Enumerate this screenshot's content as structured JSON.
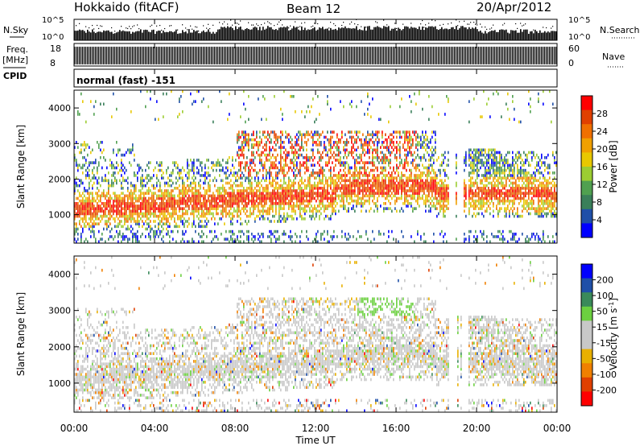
{
  "header": {
    "station": "Hokkaido (fitACF)",
    "beam": "Beam 12",
    "date": "20/Apr/2012"
  },
  "strips": {
    "nsky_label": "N.Sky",
    "nsky_ticks": [
      "10^5",
      "10^0"
    ],
    "nsearch_label": "N.Search",
    "nsearch_ticks": [
      "10^5",
      "10^0"
    ],
    "freq_label": "Freq.",
    "freq_unit": "[MHz]",
    "freq_ticks": [
      "18",
      "8"
    ],
    "nave_label": "Nave",
    "nave_ticks": [
      "60",
      "0"
    ],
    "cpid_label": "CPID",
    "cpid_text": "normal (fast) -151"
  },
  "colors": {
    "power_scale": [
      "#0000ff",
      "#1f4fa8",
      "#3a7f5a",
      "#50a050",
      "#9ccd32",
      "#e8c800",
      "#f0a000",
      "#f07000",
      "#e04000",
      "#ff0000"
    ],
    "velocity_scale": [
      "#0000ff",
      "#1f4fa8",
      "#3a8a5a",
      "#6cd040",
      "#c8c8c8",
      "#c8c8c8",
      "#e8b000",
      "#f08000",
      "#e04000",
      "#ff0000"
    ]
  },
  "chart_data": [
    {
      "type": "heatmap",
      "name": "power",
      "ylabel": "Slant Range [km]",
      "y_ticks": [
        1000,
        2000,
        3000,
        4000
      ],
      "ylim": [
        200,
        4500
      ],
      "xlim": [
        0,
        24
      ],
      "colorbar_label": "Power [dB]",
      "colorbar_ticks": [
        "28",
        "24",
        "20",
        "16",
        "12",
        "8",
        "4"
      ],
      "colorbar_range": [
        0,
        30
      ]
    },
    {
      "type": "heatmap",
      "name": "velocity",
      "ylabel": "Slant Range [km]",
      "y_ticks": [
        1000,
        2000,
        3000,
        4000
      ],
      "ylim": [
        200,
        4500
      ],
      "xlim": [
        0,
        24
      ],
      "colorbar_label": "Velocity [m s^-1]",
      "colorbar_ticks": [
        "200",
        "100",
        "50",
        "15",
        "-15",
        "-50",
        "-100",
        "-200"
      ]
    }
  ],
  "xaxis": {
    "label": "Time UT",
    "ticks": [
      "00:00",
      "04:00",
      "08:00",
      "12:00",
      "16:00",
      "20:00",
      "00:00"
    ]
  }
}
